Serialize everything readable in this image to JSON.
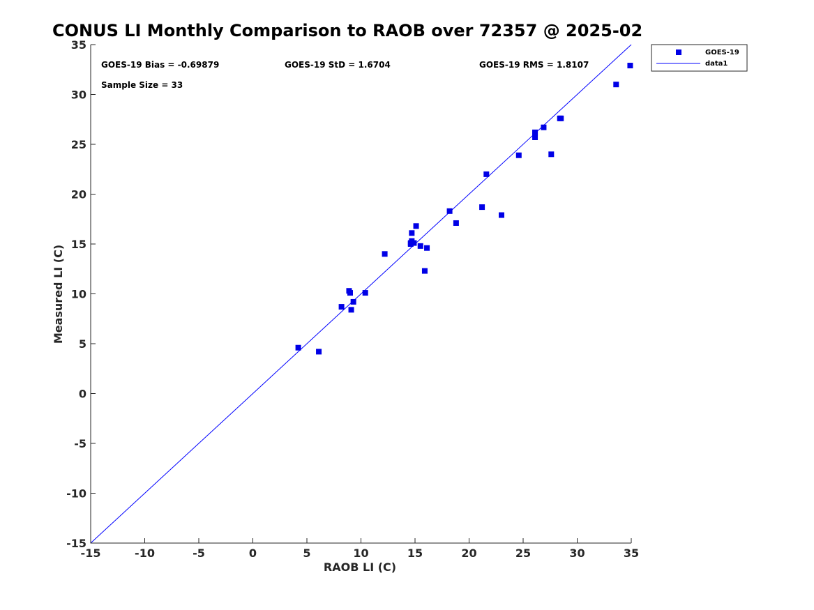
{
  "chart_data": {
    "type": "scatter",
    "title": "CONUS LI Monthly Comparison to RAOB over 72357 @ 2025-02",
    "xlabel": "RAOB LI (C)",
    "ylabel": "Measured LI (C)",
    "xlim": [
      -15,
      35
    ],
    "ylim": [
      -15,
      35
    ],
    "xticks": [
      "-15",
      "-10",
      "-5",
      "0",
      "5",
      "10",
      "15",
      "20",
      "25",
      "30",
      "35"
    ],
    "yticks": [
      "35",
      "30",
      "25",
      "20",
      "15",
      "10",
      "5",
      "0",
      "-5",
      "-10",
      "-15"
    ],
    "grid": false,
    "legend_position": "outside-top-right",
    "stats": {
      "bias": "GOES-19 Bias = -0.69879",
      "std": "GOES-19 StD = 1.6704",
      "rms": "GOES-19 RMS = 1.8107",
      "sample": "Sample Size = 33"
    },
    "series": [
      {
        "name": "GOES-19",
        "kind": "markers",
        "color": "#0000e6",
        "points": [
          [
            4.2,
            4.6
          ],
          [
            6.1,
            4.2
          ],
          [
            8.2,
            8.7
          ],
          [
            8.9,
            10.3
          ],
          [
            9.0,
            10.1
          ],
          [
            9.1,
            8.4
          ],
          [
            9.3,
            9.2
          ],
          [
            10.4,
            10.1
          ],
          [
            12.2,
            14.0
          ],
          [
            14.6,
            15.0
          ],
          [
            14.7,
            15.3
          ],
          [
            14.7,
            16.1
          ],
          [
            14.9,
            15.1
          ],
          [
            15.1,
            16.8
          ],
          [
            15.5,
            14.8
          ],
          [
            15.9,
            12.3
          ],
          [
            16.1,
            14.6
          ],
          [
            18.2,
            18.3
          ],
          [
            18.8,
            17.1
          ],
          [
            21.2,
            18.7
          ],
          [
            21.6,
            22.0
          ],
          [
            23.0,
            17.9
          ],
          [
            24.6,
            23.9
          ],
          [
            26.1,
            25.7
          ],
          [
            26.1,
            26.1
          ],
          [
            26.1,
            26.2
          ],
          [
            26.9,
            26.7
          ],
          [
            27.6,
            24.0
          ],
          [
            28.4,
            27.6
          ],
          [
            28.5,
            27.6
          ],
          [
            33.6,
            31.0
          ],
          [
            34.9,
            32.9
          ],
          [
            14.6,
            15.1
          ]
        ]
      },
      {
        "name": "data1",
        "kind": "line",
        "color": "#0000ff",
        "x": [
          -15,
          35
        ],
        "y": [
          -15,
          35
        ]
      }
    ]
  }
}
